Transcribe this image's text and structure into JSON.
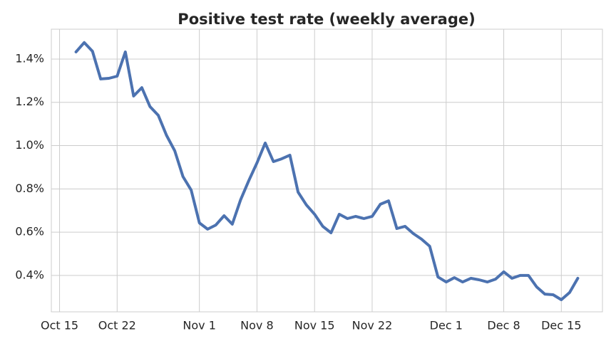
{
  "chart_data": {
    "type": "line",
    "title": "Positive test rate (weekly average)",
    "x": [
      "Oct 17",
      "Oct 18",
      "Oct 19",
      "Oct 20",
      "Oct 21",
      "Oct 22",
      "Oct 23",
      "Oct 24",
      "Oct 25",
      "Oct 26",
      "Oct 27",
      "Oct 28",
      "Oct 29",
      "Oct 30",
      "Oct 31",
      "Nov 1",
      "Nov 2",
      "Nov 3",
      "Nov 4",
      "Nov 5",
      "Nov 6",
      "Nov 7",
      "Nov 8",
      "Nov 9",
      "Nov 10",
      "Nov 11",
      "Nov 12",
      "Nov 13",
      "Nov 14",
      "Nov 15",
      "Nov 16",
      "Nov 17",
      "Nov 18",
      "Nov 19",
      "Nov 20",
      "Nov 21",
      "Nov 22",
      "Nov 23",
      "Nov 24",
      "Nov 25",
      "Nov 26",
      "Nov 27",
      "Nov 28",
      "Nov 29",
      "Nov 30",
      "Dec 1",
      "Dec 2",
      "Dec 3",
      "Dec 4",
      "Dec 5",
      "Dec 6",
      "Dec 7",
      "Dec 8",
      "Dec 9",
      "Dec 10",
      "Dec 11",
      "Dec 12",
      "Dec 13",
      "Dec 14",
      "Dec 15",
      "Dec 16",
      "Dec 17"
    ],
    "series": [
      {
        "color": "#4c72b0",
        "values": [
          1.433,
          1.476,
          1.436,
          1.308,
          1.311,
          1.321,
          1.433,
          1.229,
          1.268,
          1.18,
          1.14,
          1.048,
          0.976,
          0.857,
          0.795,
          0.643,
          0.614,
          0.633,
          0.676,
          0.637,
          0.749,
          0.838,
          0.92,
          1.012,
          0.926,
          0.939,
          0.956,
          0.785,
          0.726,
          0.683,
          0.627,
          0.597,
          0.683,
          0.663,
          0.673,
          0.663,
          0.673,
          0.729,
          0.745,
          0.617,
          0.627,
          0.594,
          0.568,
          0.535,
          0.393,
          0.37,
          0.39,
          0.37,
          0.387,
          0.38,
          0.37,
          0.383,
          0.417,
          0.387,
          0.4,
          0.4,
          0.347,
          0.314,
          0.311,
          0.288,
          0.321,
          0.387
        ]
      }
    ],
    "xlim": [
      "Oct 14",
      "Dec 20"
    ],
    "xticks": [
      "Oct 15",
      "Oct 22",
      "Nov 1",
      "Nov 8",
      "Nov 15",
      "Nov 22",
      "Dec 1",
      "Dec 8",
      "Dec 15"
    ],
    "ylim": [
      0.232,
      1.538
    ],
    "yticks": [
      {
        "value": 0.4,
        "label": "0.4%"
      },
      {
        "value": 0.6,
        "label": "0.6%"
      },
      {
        "value": 0.8,
        "label": "0.8%"
      },
      {
        "value": 1.0,
        "label": "1.0%"
      },
      {
        "value": 1.2,
        "label": "1.2%"
      },
      {
        "value": 1.4,
        "label": "1.4%"
      }
    ],
    "grid": true
  }
}
